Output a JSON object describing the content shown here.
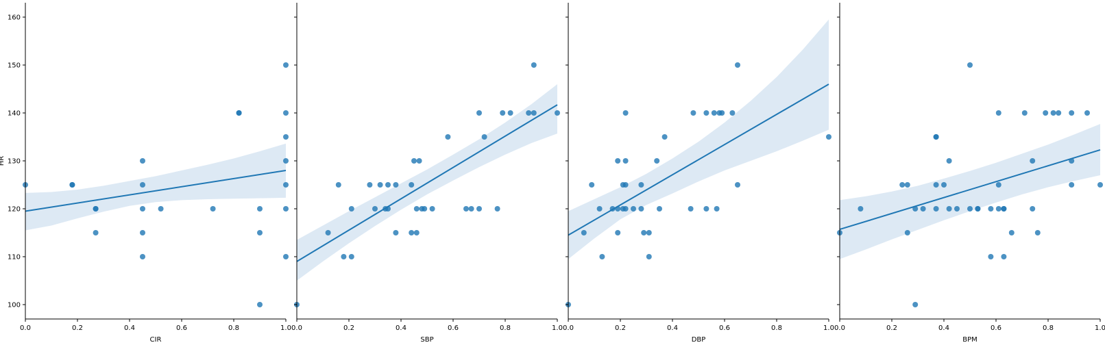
{
  "chart_data": {
    "type": "scatter",
    "y_label": "HR",
    "ylim": [
      97,
      163
    ],
    "y_ticks": [
      100,
      110,
      120,
      130,
      140,
      150,
      160
    ],
    "xlim": [
      0,
      1
    ],
    "x_ticks": [
      0.0,
      0.2,
      0.4,
      0.6,
      0.8,
      1.0
    ],
    "x_tick_labels": [
      "0.0",
      "0.2",
      "0.4",
      "0.6",
      "0.8",
      "1.0"
    ],
    "point_color": "#1f77b4",
    "line_color": "#1f77b4",
    "band_color": "#dde9f4",
    "panels": [
      {
        "xlabel": "CIR",
        "points": [
          [
            0,
            125
          ],
          [
            0.18,
            125
          ],
          [
            0.18,
            125
          ],
          [
            0.27,
            120
          ],
          [
            0.27,
            115
          ],
          [
            0.27,
            120
          ],
          [
            0.45,
            130
          ],
          [
            0.45,
            125
          ],
          [
            0.45,
            120
          ],
          [
            0.45,
            115
          ],
          [
            0.45,
            110
          ],
          [
            0.52,
            120
          ],
          [
            0.72,
            120
          ],
          [
            0.82,
            140
          ],
          [
            0.82,
            140
          ],
          [
            0.9,
            120
          ],
          [
            0.9,
            115
          ],
          [
            0.9,
            100
          ],
          [
            1.0,
            150
          ],
          [
            1.0,
            140
          ],
          [
            1.0,
            135
          ],
          [
            1.0,
            130
          ],
          [
            1.0,
            125
          ],
          [
            1.0,
            120
          ],
          [
            1.0,
            110
          ]
        ],
        "fit": [
          [
            0,
            119.5
          ],
          [
            1,
            128
          ]
        ],
        "band": {
          "upper": [
            [
              0,
              123.3
            ],
            [
              0.1,
              123.5
            ],
            [
              0.2,
              124
            ],
            [
              0.3,
              124.8
            ],
            [
              0.4,
              125.8
            ],
            [
              0.5,
              126.8
            ],
            [
              0.6,
              128
            ],
            [
              0.7,
              129.2
            ],
            [
              0.8,
              130.5
            ],
            [
              0.9,
              132
            ],
            [
              1,
              133.6
            ]
          ],
          "lower": [
            [
              0,
              115.5
            ],
            [
              0.1,
              116.5
            ],
            [
              0.2,
              118
            ],
            [
              0.3,
              119.4
            ],
            [
              0.4,
              120.6
            ],
            [
              0.5,
              121.4
            ],
            [
              0.6,
              121.8
            ],
            [
              0.7,
              122
            ],
            [
              0.8,
              122.1
            ],
            [
              0.9,
              122.2
            ],
            [
              1,
              122.3
            ]
          ]
        }
      },
      {
        "xlabel": "SBP",
        "points": [
          [
            0,
            100
          ],
          [
            0.12,
            115
          ],
          [
            0.16,
            125
          ],
          [
            0.18,
            110
          ],
          [
            0.21,
            120
          ],
          [
            0.21,
            110
          ],
          [
            0.28,
            125
          ],
          [
            0.3,
            120
          ],
          [
            0.32,
            125
          ],
          [
            0.34,
            120
          ],
          [
            0.35,
            125
          ],
          [
            0.35,
            120
          ],
          [
            0.38,
            125
          ],
          [
            0.38,
            115
          ],
          [
            0.44,
            125
          ],
          [
            0.44,
            115
          ],
          [
            0.45,
            130
          ],
          [
            0.46,
            120
          ],
          [
            0.46,
            115
          ],
          [
            0.47,
            130
          ],
          [
            0.48,
            120
          ],
          [
            0.49,
            120
          ],
          [
            0.52,
            120
          ],
          [
            0.58,
            135
          ],
          [
            0.65,
            120
          ],
          [
            0.67,
            120
          ],
          [
            0.7,
            140
          ],
          [
            0.7,
            120
          ],
          [
            0.72,
            135
          ],
          [
            0.77,
            120
          ],
          [
            0.79,
            140
          ],
          [
            0.82,
            140
          ],
          [
            0.89,
            140
          ],
          [
            0.91,
            150
          ],
          [
            0.91,
            140
          ],
          [
            1.0,
            140
          ]
        ],
        "fit": [
          [
            0,
            109
          ],
          [
            1,
            141.7
          ]
        ],
        "band": {
          "upper": [
            [
              0,
              113.5
            ],
            [
              0.1,
              116.5
            ],
            [
              0.2,
              119.5
            ],
            [
              0.3,
              122.4
            ],
            [
              0.4,
              125.3
            ],
            [
              0.5,
              128.2
            ],
            [
              0.6,
              131.3
            ],
            [
              0.7,
              134.5
            ],
            [
              0.8,
              138
            ],
            [
              0.9,
              141.8
            ],
            [
              1,
              146
            ]
          ],
          "lower": [
            [
              0,
              105
            ],
            [
              0.1,
              109
            ],
            [
              0.2,
              112.8
            ],
            [
              0.3,
              116.4
            ],
            [
              0.4,
              119.8
            ],
            [
              0.5,
              123
            ],
            [
              0.6,
              125.9
            ],
            [
              0.7,
              128.7
            ],
            [
              0.8,
              131.3
            ],
            [
              0.9,
              133.7
            ],
            [
              1,
              135.7
            ]
          ]
        }
      },
      {
        "xlabel": "DBP",
        "points": [
          [
            0,
            100
          ],
          [
            0.06,
            115
          ],
          [
            0.09,
            125
          ],
          [
            0.12,
            120
          ],
          [
            0.13,
            110
          ],
          [
            0.17,
            120
          ],
          [
            0.19,
            130
          ],
          [
            0.19,
            120
          ],
          [
            0.19,
            115
          ],
          [
            0.21,
            125
          ],
          [
            0.21,
            120
          ],
          [
            0.22,
            140
          ],
          [
            0.22,
            130
          ],
          [
            0.22,
            125
          ],
          [
            0.22,
            120
          ],
          [
            0.25,
            120
          ],
          [
            0.28,
            125
          ],
          [
            0.28,
            120
          ],
          [
            0.29,
            115
          ],
          [
            0.31,
            115
          ],
          [
            0.31,
            110
          ],
          [
            0.34,
            130
          ],
          [
            0.35,
            120
          ],
          [
            0.37,
            135
          ],
          [
            0.47,
            120
          ],
          [
            0.48,
            140
          ],
          [
            0.53,
            140
          ],
          [
            0.53,
            120
          ],
          [
            0.56,
            140
          ],
          [
            0.57,
            120
          ],
          [
            0.58,
            140
          ],
          [
            0.59,
            140
          ],
          [
            0.63,
            140
          ],
          [
            0.65,
            150
          ],
          [
            0.65,
            125
          ],
          [
            1.0,
            135
          ]
        ],
        "fit": [
          [
            0,
            114.5
          ],
          [
            1,
            146
          ]
        ],
        "band": {
          "upper": [
            [
              0,
              119.5
            ],
            [
              0.1,
              122
            ],
            [
              0.2,
              124.5
            ],
            [
              0.3,
              127.3
            ],
            [
              0.4,
              130.5
            ],
            [
              0.5,
              134
            ],
            [
              0.6,
              138
            ],
            [
              0.7,
              142.5
            ],
            [
              0.8,
              147.5
            ],
            [
              0.9,
              153.2
            ],
            [
              1,
              159.5
            ]
          ],
          "lower": [
            [
              0,
              109.5
            ],
            [
              0.1,
              113.8
            ],
            [
              0.2,
              117.8
            ],
            [
              0.3,
              120.8
            ],
            [
              0.4,
              123.2
            ],
            [
              0.5,
              125.7
            ],
            [
              0.6,
              128
            ],
            [
              0.7,
              130
            ],
            [
              0.8,
              132
            ],
            [
              0.9,
              134.2
            ],
            [
              1,
              136.5
            ]
          ]
        }
      },
      {
        "xlabel": "BPM",
        "points": [
          [
            0,
            115
          ],
          [
            0.08,
            120
          ],
          [
            0.24,
            125
          ],
          [
            0.26,
            125
          ],
          [
            0.26,
            115
          ],
          [
            0.29,
            120
          ],
          [
            0.29,
            100
          ],
          [
            0.32,
            120
          ],
          [
            0.37,
            135
          ],
          [
            0.37,
            135
          ],
          [
            0.37,
            125
          ],
          [
            0.37,
            120
          ],
          [
            0.4,
            125
          ],
          [
            0.42,
            130
          ],
          [
            0.42,
            120
          ],
          [
            0.45,
            120
          ],
          [
            0.5,
            150
          ],
          [
            0.5,
            120
          ],
          [
            0.53,
            120
          ],
          [
            0.53,
            120
          ],
          [
            0.58,
            120
          ],
          [
            0.58,
            110
          ],
          [
            0.61,
            140
          ],
          [
            0.61,
            125
          ],
          [
            0.61,
            120
          ],
          [
            0.63,
            120
          ],
          [
            0.63,
            120
          ],
          [
            0.63,
            110
          ],
          [
            0.66,
            115
          ],
          [
            0.71,
            140
          ],
          [
            0.74,
            130
          ],
          [
            0.74,
            120
          ],
          [
            0.76,
            115
          ],
          [
            0.79,
            140
          ],
          [
            0.82,
            140
          ],
          [
            0.84,
            140
          ],
          [
            0.89,
            140
          ],
          [
            0.89,
            130
          ],
          [
            0.89,
            125
          ],
          [
            0.95,
            140
          ],
          [
            1.0,
            125
          ]
        ],
        "fit": [
          [
            0,
            115.7
          ],
          [
            1,
            132.3
          ]
        ],
        "band": {
          "upper": [
            [
              0,
              121.8
            ],
            [
              0.1,
              122.6
            ],
            [
              0.2,
              123.6
            ],
            [
              0.3,
              124.8
            ],
            [
              0.4,
              126.3
            ],
            [
              0.5,
              127.9
            ],
            [
              0.6,
              129.6
            ],
            [
              0.7,
              131.5
            ],
            [
              0.8,
              133.4
            ],
            [
              0.9,
              135.5
            ],
            [
              1,
              137.7
            ]
          ],
          "lower": [
            [
              0,
              109.5
            ],
            [
              0.1,
              111.5
            ],
            [
              0.2,
              113.6
            ],
            [
              0.3,
              115.6
            ],
            [
              0.4,
              117.6
            ],
            [
              0.5,
              119.5
            ],
            [
              0.6,
              121.3
            ],
            [
              0.7,
              123
            ],
            [
              0.8,
              124.5
            ],
            [
              0.9,
              125.8
            ],
            [
              1,
              127
            ]
          ]
        }
      }
    ]
  }
}
